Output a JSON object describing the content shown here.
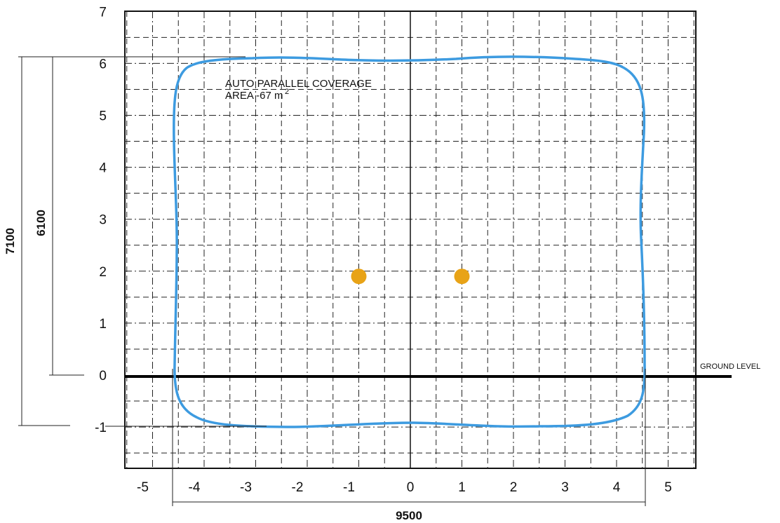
{
  "diagram": {
    "x_axis": {
      "ticks": [
        "-5",
        "-4",
        "-3",
        "-2",
        "-1",
        "0",
        "1",
        "2",
        "3",
        "4",
        "5"
      ]
    },
    "y_axis": {
      "ticks": [
        "7",
        "6",
        "5",
        "4",
        "3",
        "2",
        "1",
        "0",
        "-1"
      ]
    },
    "dimensions": {
      "height_total": "7100",
      "height_above_ground": "6100",
      "width": "9500"
    },
    "ground_label": "GROUND LEVEL",
    "coverage_label_line1": "AUTO PARALLEL COVERAGE",
    "coverage_label_line2": "AREA -67 m",
    "coverage_label_sup": "2",
    "colors": {
      "coverage_outline": "#3d9be0",
      "device_dot": "#e8a317",
      "grid": "#222222",
      "ground": "#000000"
    },
    "devices": [
      {
        "x": -1,
        "y": 1.9
      },
      {
        "x": 1,
        "y": 1.9
      }
    ]
  }
}
